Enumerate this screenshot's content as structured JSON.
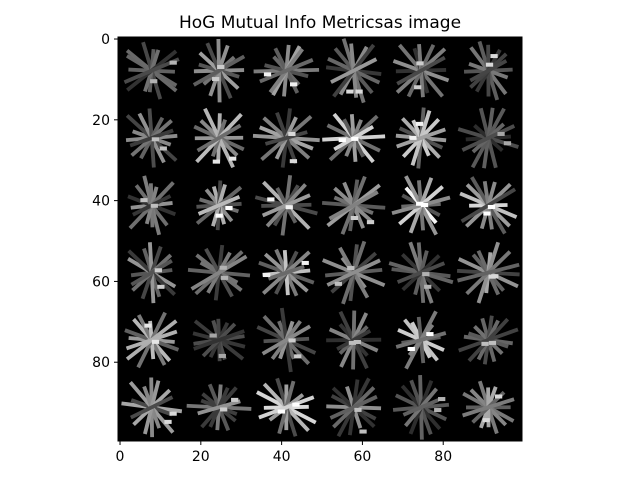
{
  "chart_data": {
    "type": "heatmap",
    "title": "HoG Mutual Info Metricsas image",
    "xlabel": "",
    "ylabel": "",
    "colormap": "gray",
    "image_shape": [
      100,
      100
    ],
    "xlim": [
      -0.5,
      99.5
    ],
    "ylim": [
      99.5,
      -0.5
    ],
    "x_ticks": [
      0,
      20,
      40,
      60,
      80
    ],
    "y_ticks": [
      0,
      20,
      40,
      60,
      80
    ],
    "x_tick_labels": [
      "0",
      "20",
      "40",
      "60",
      "80"
    ],
    "y_tick_labels": [
      "0",
      "20",
      "40",
      "60",
      "80"
    ],
    "grid": false,
    "cells": {
      "rows": 6,
      "cols": 6,
      "values": [
        [
          0.45,
          0.55,
          0.7,
          0.6,
          0.55,
          0.6
        ],
        [
          0.5,
          0.65,
          0.6,
          0.85,
          0.7,
          0.4
        ],
        [
          0.5,
          0.75,
          0.7,
          0.55,
          0.9,
          0.75
        ],
        [
          0.55,
          0.45,
          0.7,
          0.5,
          0.45,
          0.6
        ],
        [
          0.65,
          0.4,
          0.55,
          0.5,
          0.85,
          0.5
        ],
        [
          0.6,
          0.55,
          0.75,
          0.5,
          0.45,
          0.6
        ]
      ]
    }
  }
}
